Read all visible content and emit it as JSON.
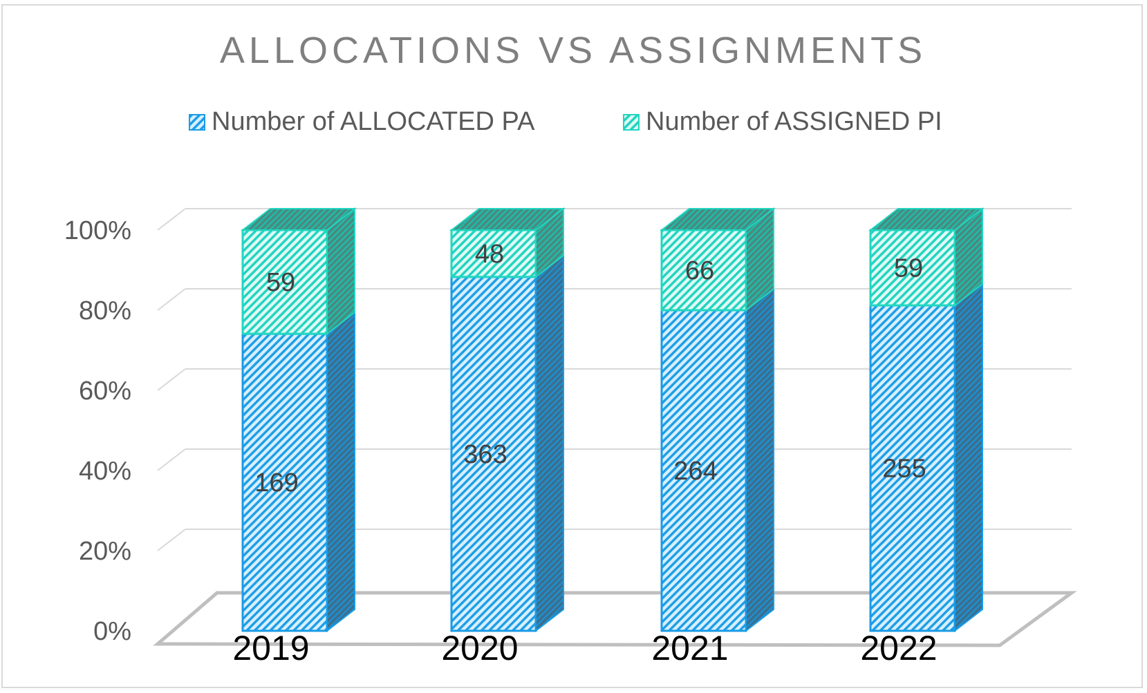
{
  "chart_data": {
    "type": "bar",
    "stacked": "percent",
    "three_d": true,
    "title": "ALLOCATIONS VS ASSIGNMENTS",
    "categories": [
      "2019",
      "2020",
      "2021",
      "2022"
    ],
    "series": [
      {
        "name": "Number of ALLOCATED PA",
        "values": [
          169,
          363,
          264,
          255
        ],
        "color": "#1a9be6"
      },
      {
        "name": "Number of ASSIGNED PI",
        "values": [
          59,
          48,
          66,
          59
        ],
        "color": "#22d6c0"
      }
    ],
    "yticks": [
      "0%",
      "20%",
      "40%",
      "60%",
      "80%",
      "100%"
    ],
    "ylim": [
      0,
      100
    ],
    "legend_position": "top",
    "grid": true
  }
}
